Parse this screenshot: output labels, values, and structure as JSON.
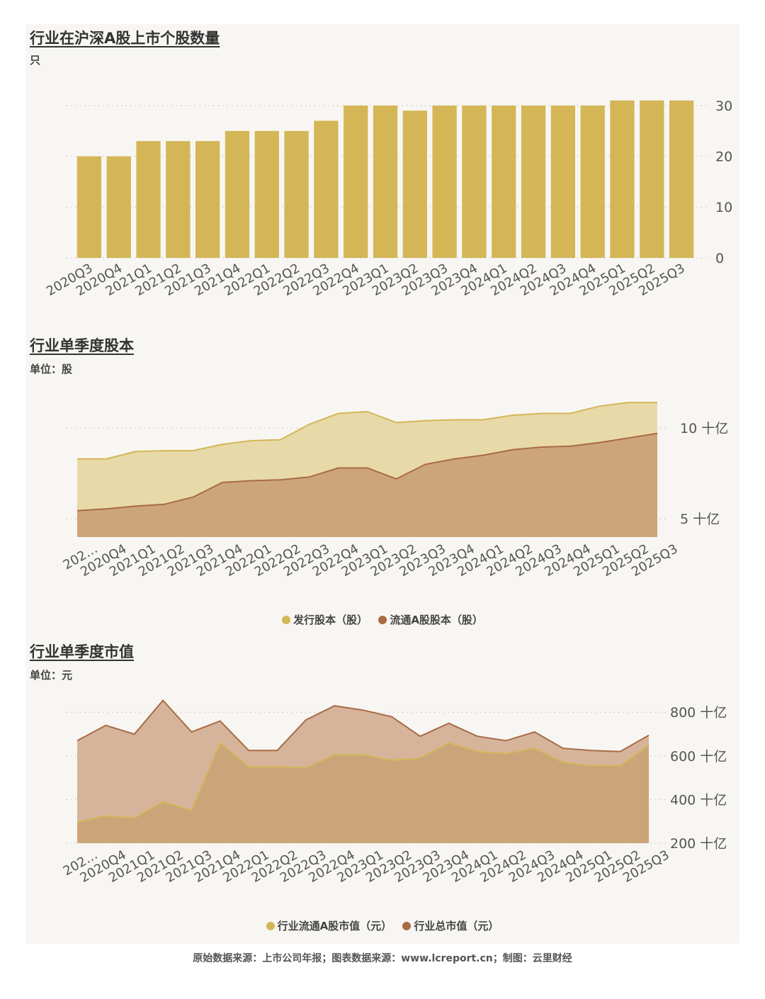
{
  "charts": [
    {
      "title": "行业在沪深A股上市个股数量",
      "unit": "只",
      "chart_data": {
        "type": "bar",
        "categories": [
          "2020Q3",
          "2020Q4",
          "2021Q1",
          "2021Q2",
          "2021Q3",
          "2021Q4",
          "2022Q1",
          "2022Q2",
          "2022Q3",
          "2022Q4",
          "2023Q1",
          "2023Q2",
          "2023Q3",
          "2023Q4",
          "2024Q1",
          "2024Q2",
          "2024Q3",
          "2024Q4",
          "2025Q1",
          "2025Q2",
          "2025Q3"
        ],
        "values": [
          20,
          20,
          23,
          23,
          23,
          25,
          25,
          25,
          27,
          30,
          30,
          29,
          30,
          30,
          30,
          30,
          30,
          30,
          31,
          31,
          31
        ],
        "ylim": [
          0,
          30
        ],
        "yticks": [
          0,
          10,
          20,
          30
        ],
        "ytick_labels": [
          "0",
          "10",
          "20",
          "30"
        ],
        "color": "#d4b657"
      }
    },
    {
      "title": "行业单季度股本",
      "unit": "单位：股",
      "chart_data": {
        "type": "area",
        "categories": [
          "202…",
          "2020Q4",
          "2021Q1",
          "2021Q2",
          "2021Q3",
          "2021Q4",
          "2022Q1",
          "2022Q2",
          "2022Q3",
          "2022Q4",
          "2023Q1",
          "2023Q2",
          "2023Q3",
          "2023Q4",
          "2024Q1",
          "2024Q2",
          "2024Q3",
          "2024Q4",
          "2025Q1",
          "2025Q2",
          "2025Q3"
        ],
        "series": [
          {
            "name": "发行股本（股）",
            "color": "#d4b657",
            "fill": "#e8d9a9",
            "values": [
              8.3,
              8.3,
              8.7,
              8.75,
              8.75,
              9.1,
              9.3,
              9.35,
              10.2,
              10.8,
              10.9,
              10.3,
              10.4,
              10.45,
              10.45,
              10.7,
              10.8,
              10.8,
              11.2,
              11.4,
              11.4
            ]
          },
          {
            "name": "流通A股股本（股）",
            "color": "#a86b45",
            "fill": "#cda57a",
            "values": [
              5.45,
              5.55,
              5.7,
              5.8,
              6.2,
              7.0,
              7.1,
              7.15,
              7.3,
              7.8,
              7.8,
              7.2,
              8.0,
              8.3,
              8.5,
              8.8,
              8.95,
              9.0,
              9.2,
              9.45,
              9.7
            ]
          }
        ],
        "ylim": [
          4.0,
          11.6
        ],
        "yticks": [
          5,
          10
        ],
        "ytick_labels": [
          "5 十亿",
          "10 十亿"
        ]
      }
    },
    {
      "title": "行业单季度市值",
      "unit": "单位：元",
      "chart_data": {
        "type": "area",
        "categories": [
          "202…",
          "2020Q4",
          "2021Q1",
          "2021Q2",
          "2021Q3",
          "2021Q4",
          "2022Q1",
          "2022Q2",
          "2022Q3",
          "2022Q4",
          "2023Q1",
          "2023Q2",
          "2023Q3",
          "2023Q4",
          "2024Q1",
          "2024Q2",
          "2024Q3",
          "2024Q4",
          "2025Q1",
          "2025Q2",
          "2025Q3"
        ],
        "series": [
          {
            "name": "行业流通A股市值（元）",
            "color": "#d4b657",
            "fill": "#caa57a",
            "values": [
              295,
              325,
              315,
              390,
              350,
              660,
              550,
              550,
              545,
              605,
              605,
              580,
              590,
              660,
              620,
              610,
              635,
              570,
              555,
              555,
              650
            ]
          },
          {
            "name": "行业总市值（元）",
            "color": "#a86b45",
            "fill": "#d6b49b",
            "values": [
              670,
              740,
              700,
              855,
              710,
              760,
              625,
              625,
              765,
              830,
              810,
              780,
              690,
              750,
              690,
              670,
              710,
              635,
              625,
              620,
              695
            ]
          }
        ],
        "ylim": [
          200,
          850
        ],
        "yticks": [
          200,
          400,
          600,
          800
        ],
        "ytick_labels": [
          "200 十亿",
          "400 十亿",
          "600 十亿",
          "800 十亿"
        ]
      }
    }
  ],
  "source_text": "原始数据来源：上市公司年报；图表数据来源：www.lcreport.cn；制图：云里财经"
}
